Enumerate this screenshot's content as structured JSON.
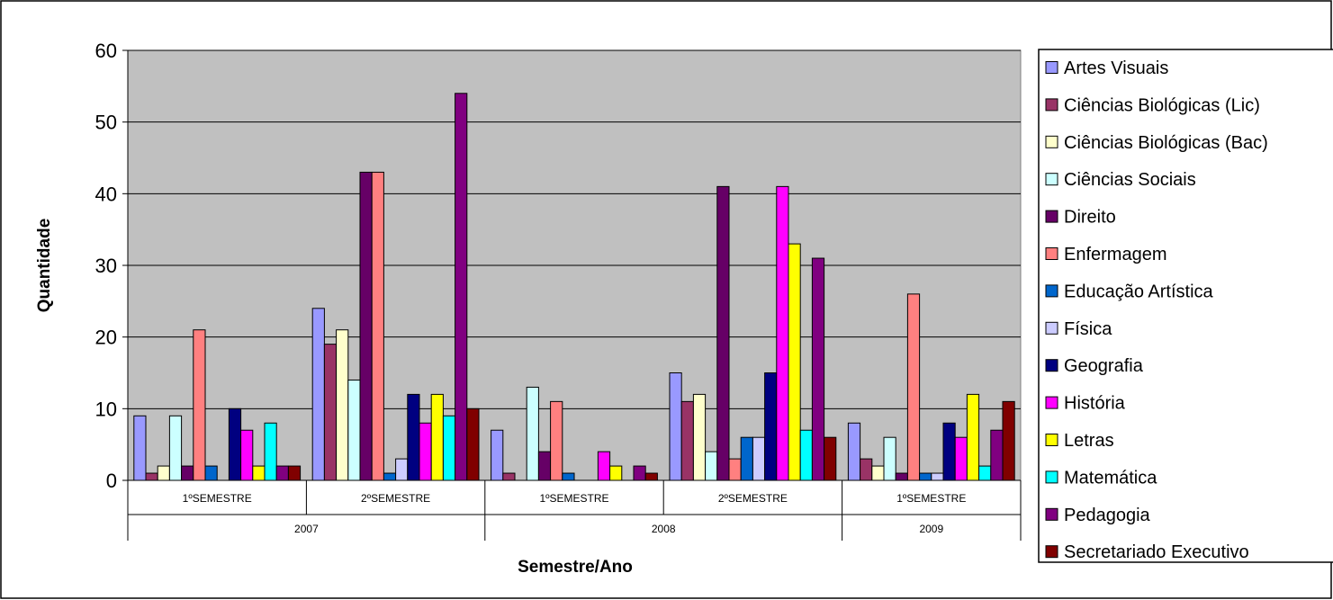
{
  "chart_data": {
    "type": "bar",
    "title": "",
    "xlabel": "Semestre/Ano",
    "ylabel": "Quantidade",
    "ylim": [
      0,
      60
    ],
    "yticks": [
      0,
      10,
      20,
      30,
      40,
      50,
      60
    ],
    "grid": true,
    "legend_position": "right",
    "plot_background": "#c0c0c0",
    "categories": [
      {
        "semester": "1ºSEMESTRE",
        "year": "2007"
      },
      {
        "semester": "2ºSEMESTRE",
        "year": "2007"
      },
      {
        "semester": "1ºSEMESTRE",
        "year": "2008"
      },
      {
        "semester": "2ºSEMESTRE",
        "year": "2008"
      },
      {
        "semester": "1ºSEMESTRE",
        "year": "2009"
      }
    ],
    "year_groups": [
      {
        "label": "2007"
      },
      {
        "label": "2008"
      },
      {
        "label": "2009"
      }
    ],
    "series": [
      {
        "name": "Artes Visuais",
        "color": "#9999ff",
        "values": [
          9,
          24,
          7,
          15,
          8
        ]
      },
      {
        "name": "Ciências Biológicas (Lic)",
        "color": "#993366",
        "values": [
          1,
          19,
          1,
          11,
          3
        ]
      },
      {
        "name": "Ciências Biológicas (Bac)",
        "color": "#ffffcc",
        "values": [
          2,
          21,
          0,
          12,
          2
        ]
      },
      {
        "name": "Ciências Sociais",
        "color": "#ccffff",
        "values": [
          9,
          14,
          13,
          4,
          6
        ]
      },
      {
        "name": " Direito",
        "color": "#660066",
        "values": [
          2,
          43,
          4,
          41,
          1
        ]
      },
      {
        "name": "Enfermagem",
        "color": "#ff8080",
        "values": [
          21,
          43,
          11,
          3,
          26
        ]
      },
      {
        "name": "Educação Artística",
        "color": "#0066cc",
        "values": [
          2,
          1,
          1,
          6,
          1
        ]
      },
      {
        "name": " Física",
        "color": "#ccccff",
        "values": [
          0,
          3,
          0,
          6,
          1
        ]
      },
      {
        "name": " Geografia",
        "color": "#000080",
        "values": [
          10,
          12,
          0,
          15,
          8
        ]
      },
      {
        "name": "História",
        "color": "#ff00ff",
        "values": [
          7,
          8,
          4,
          41,
          6
        ]
      },
      {
        "name": "Letras",
        "color": "#ffff00",
        "values": [
          2,
          12,
          2,
          33,
          12
        ]
      },
      {
        "name": "Matemática",
        "color": "#00ffff",
        "values": [
          8,
          9,
          0,
          7,
          2
        ]
      },
      {
        "name": "Pedagogia",
        "color": "#800080",
        "values": [
          2,
          54,
          2,
          31,
          7
        ]
      },
      {
        "name": "Secretariado Executivo",
        "color": "#800000",
        "values": [
          2,
          10,
          1,
          6,
          11
        ]
      }
    ]
  }
}
